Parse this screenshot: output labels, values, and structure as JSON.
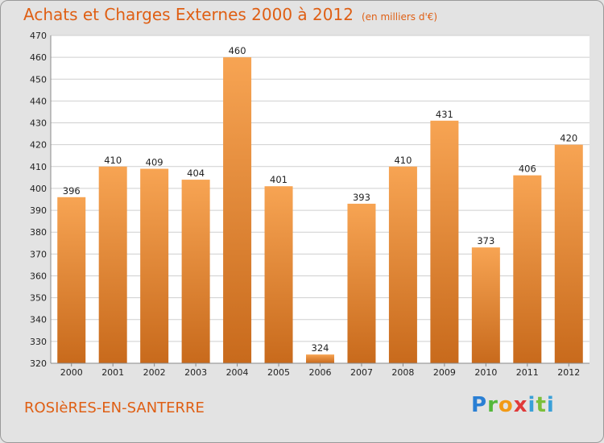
{
  "header": {
    "title": "Achats et Charges Externes 2000 à 2012",
    "subtitle": "(en milliers d'€)"
  },
  "footer": {
    "commune": "ROSIèRES-EN-SANTERRE",
    "logo": "Proxiti"
  },
  "colors": {
    "bar_top": "#f7a453",
    "bar_bottom": "#c86a1c",
    "title": "#df5f14",
    "grid": "#cfcfcf"
  },
  "chart_data": {
    "type": "bar",
    "title": "Achats et Charges Externes 2000 à 2012",
    "subtitle": "(en milliers d'€)",
    "categories": [
      "2000",
      "2001",
      "2002",
      "2003",
      "2004",
      "2005",
      "2006",
      "2007",
      "2008",
      "2009",
      "2010",
      "2011",
      "2012"
    ],
    "values": [
      396,
      410,
      409,
      404,
      460,
      401,
      324,
      393,
      410,
      431,
      373,
      406,
      420
    ],
    "ylim": [
      320,
      470
    ],
    "yticks": [
      320,
      330,
      340,
      350,
      360,
      370,
      380,
      390,
      400,
      410,
      420,
      430,
      440,
      450,
      460,
      470
    ],
    "grid": true,
    "xlabel": "",
    "ylabel": ""
  }
}
